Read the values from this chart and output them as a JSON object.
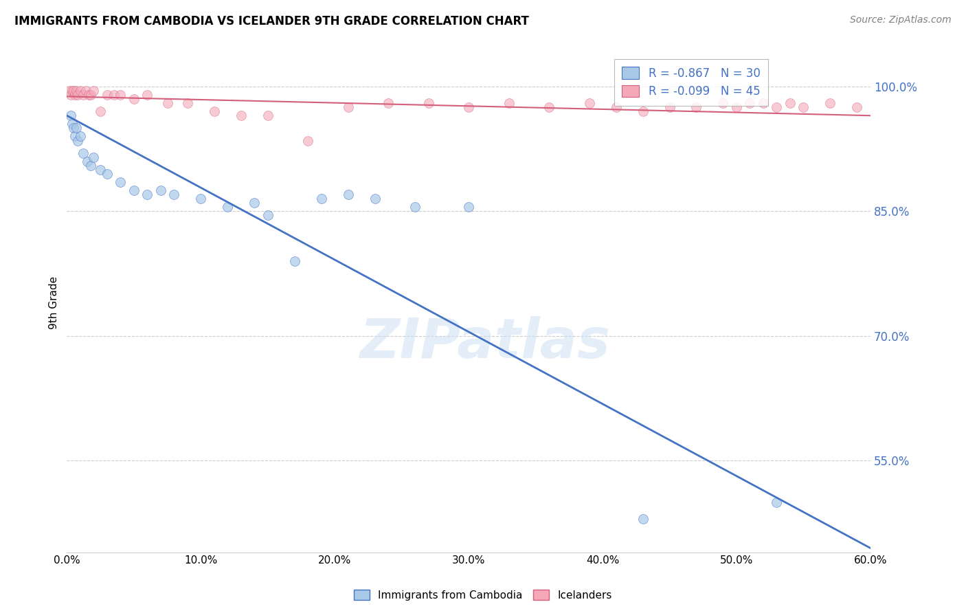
{
  "title": "IMMIGRANTS FROM CAMBODIA VS ICELANDER 9TH GRADE CORRELATION CHART",
  "source": "Source: ZipAtlas.com",
  "ylabel": "9th Grade",
  "x_tick_labels": [
    "0.0%",
    "10.0%",
    "20.0%",
    "30.0%",
    "40.0%",
    "50.0%",
    "60.0%"
  ],
  "x_tick_values": [
    0.0,
    10.0,
    20.0,
    30.0,
    40.0,
    50.0,
    60.0
  ],
  "y_tick_labels_right": [
    "55.0%",
    "70.0%",
    "85.0%",
    "100.0%"
  ],
  "y_tick_values_right": [
    55.0,
    70.0,
    85.0,
    100.0
  ],
  "xlim": [
    0.0,
    60.0
  ],
  "ylim": [
    44.0,
    104.0
  ],
  "legend_label_1": "Immigrants from Cambodia",
  "legend_label_2": "Icelanders",
  "legend_color_1": "#a8c8e8",
  "legend_color_2": "#f4a8b8",
  "blue_r": -0.867,
  "blue_n": 30,
  "pink_r": -0.099,
  "pink_n": 45,
  "blue_line_color": "#4472c4",
  "pink_line_color": "#d45f7a",
  "grid_color": "#cccccc",
  "watermark": "ZIPatlas",
  "blue_line_x0": 0.0,
  "blue_line_y0": 96.5,
  "blue_line_x1": 60.0,
  "blue_line_y1": 44.5,
  "pink_line_x0": 0.0,
  "pink_line_y0": 98.8,
  "pink_line_x1": 60.0,
  "pink_line_y1": 96.5,
  "blue_scatter_x": [
    0.3,
    0.4,
    0.5,
    0.6,
    0.7,
    0.8,
    1.0,
    1.2,
    1.5,
    1.8,
    2.0,
    2.5,
    3.0,
    4.0,
    5.0,
    6.0,
    7.0,
    8.0,
    10.0,
    12.0,
    14.0,
    15.0,
    17.0,
    19.0,
    21.0,
    23.0,
    26.0,
    30.0,
    43.0,
    53.0
  ],
  "blue_scatter_y": [
    96.5,
    95.5,
    95.0,
    94.0,
    95.0,
    93.5,
    94.0,
    92.0,
    91.0,
    90.5,
    91.5,
    90.0,
    89.5,
    88.5,
    87.5,
    87.0,
    87.5,
    87.0,
    86.5,
    85.5,
    86.0,
    84.5,
    79.0,
    86.5,
    87.0,
    86.5,
    85.5,
    85.5,
    48.0,
    50.0
  ],
  "pink_scatter_x": [
    0.2,
    0.3,
    0.4,
    0.5,
    0.6,
    0.7,
    0.8,
    1.0,
    1.2,
    1.4,
    1.6,
    1.8,
    2.0,
    2.5,
    3.0,
    3.5,
    4.0,
    5.0,
    6.0,
    7.5,
    9.0,
    11.0,
    13.0,
    15.0,
    18.0,
    21.0,
    24.0,
    27.0,
    30.0,
    33.0,
    36.0,
    39.0,
    41.0,
    43.0,
    45.0,
    47.0,
    49.0,
    50.0,
    51.0,
    52.0,
    53.0,
    54.0,
    55.0,
    57.0,
    59.0
  ],
  "pink_scatter_y": [
    99.5,
    99.0,
    99.5,
    99.5,
    99.0,
    99.5,
    99.0,
    99.5,
    99.0,
    99.5,
    99.0,
    99.0,
    99.5,
    97.0,
    99.0,
    99.0,
    99.0,
    98.5,
    99.0,
    98.0,
    98.0,
    97.0,
    96.5,
    96.5,
    93.5,
    97.5,
    98.0,
    98.0,
    97.5,
    98.0,
    97.5,
    98.0,
    97.5,
    97.0,
    97.5,
    97.5,
    98.0,
    97.5,
    98.0,
    98.0,
    97.5,
    98.0,
    97.5,
    98.0,
    97.5
  ]
}
